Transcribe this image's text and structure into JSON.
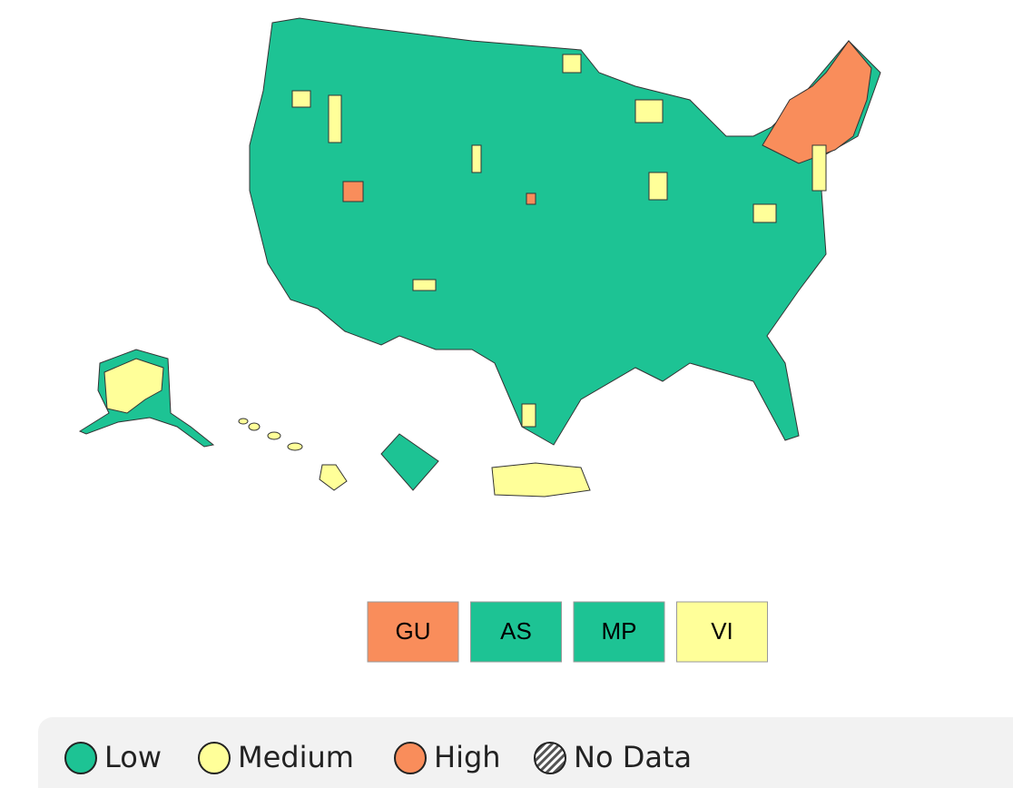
{
  "territories": [
    {
      "label": "GU",
      "color": "#f98d5b"
    },
    {
      "label": "AS",
      "color": "#1dc394"
    },
    {
      "label": "MP",
      "color": "#1dc394"
    },
    {
      "label": "VI",
      "color": "#ffff99"
    }
  ],
  "legend": [
    {
      "label": "Low",
      "color": "#1dc394"
    },
    {
      "label": "Medium",
      "color": "#ffff99"
    },
    {
      "label": "High",
      "color": "#f98d5b"
    },
    {
      "label": "No Data",
      "color": "hatch"
    }
  ]
}
